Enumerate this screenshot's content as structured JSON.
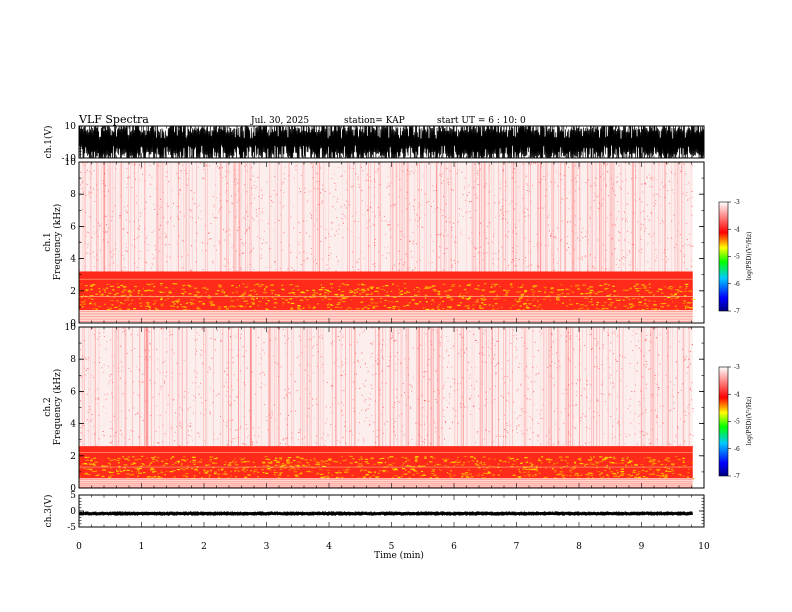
{
  "header": {
    "title": "VLF Spectra",
    "date": "Jul. 30, 2025",
    "station": "station= KAP",
    "start_ut": "start  UT  =   6  : 10: 0"
  },
  "chart_data": [
    {
      "name": "ch1-waveform",
      "type": "line",
      "ylabel": "ch.1(V)",
      "ylim": [
        -10,
        10
      ],
      "yticks": [
        -10,
        10
      ],
      "xlim": [
        0,
        10
      ],
      "description_level": "saturated oscillation between -10 and 10"
    },
    {
      "name": "ch1-spectrogram",
      "type": "heatmap",
      "ylabel": "ch.1\nFrequency (kHz)",
      "ylabel_lines": [
        "ch.1",
        "Frequency (kHz)"
      ],
      "ylim": [
        0,
        10
      ],
      "yticks": [
        0,
        2,
        4,
        6,
        8,
        10
      ],
      "xlim": [
        0,
        10
      ],
      "data_end_min": 9.82,
      "intense_band_khz": [
        0.8,
        3.2
      ],
      "colorbar": {
        "title": "log(PSD)(V²/Hz)",
        "range": [
          -7,
          -3
        ],
        "ticks": [
          -7,
          -6,
          -5,
          -4,
          -3
        ]
      }
    },
    {
      "name": "ch2-spectrogram",
      "type": "heatmap",
      "ylabel_lines": [
        "ch.2",
        "Frequency (kHz)"
      ],
      "ylim": [
        0,
        10
      ],
      "yticks": [
        0,
        2,
        4,
        6,
        8,
        10
      ],
      "xlim": [
        0,
        10
      ],
      "data_end_min": 9.82,
      "intense_band_khz": [
        0.6,
        2.6
      ],
      "colorbar": {
        "title": "log(PSD)(V²/Hz)",
        "range": [
          -7,
          -3
        ],
        "ticks": [
          -7,
          -6,
          -5,
          -4,
          -3
        ]
      }
    },
    {
      "name": "ch3-waveform",
      "type": "line",
      "ylabel": "ch.3(V)",
      "ylim": [
        -5,
        5
      ],
      "yticks": [
        -5,
        0,
        5
      ],
      "xlim": [
        0,
        10
      ],
      "level_v": -0.8
    }
  ],
  "xaxis": {
    "label": "Time (min)",
    "ticks": [
      0,
      1,
      2,
      3,
      4,
      5,
      6,
      7,
      8,
      9,
      10
    ]
  },
  "colors": {
    "colormap": [
      "#000080",
      "#0000ff",
      "#00c8ff",
      "#00ff00",
      "#ffff00",
      "#ff0000",
      "#ffffff"
    ],
    "trace": "#000000",
    "background": "#ffffff"
  }
}
